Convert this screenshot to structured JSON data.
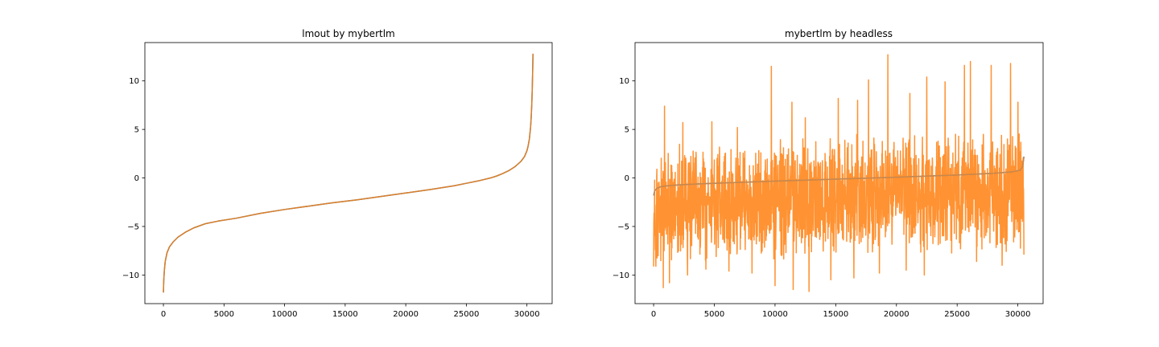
{
  "chart_data": [
    {
      "type": "line",
      "title": "lmout by mybertlm",
      "xlabel": "",
      "ylabel": "",
      "xlim": [
        -1530,
        32080
      ],
      "ylim": [
        -12.95,
        13.95
      ],
      "xticks": [
        0,
        5000,
        10000,
        15000,
        20000,
        25000,
        30000
      ],
      "xtick_labels": [
        "0",
        "5000",
        "10000",
        "15000",
        "20000",
        "25000",
        "30000"
      ],
      "yticks": [
        -10,
        -5,
        0,
        5,
        10
      ],
      "ytick_labels": [
        "−10",
        "−5",
        "0",
        "5",
        "10"
      ],
      "grid": false,
      "series": [
        {
          "color": "#1f77b4",
          "x": [
            0,
            30,
            80,
            150,
            300,
            500,
            800,
            1200,
            1800,
            2500,
            3500,
            4500,
            6000,
            8000,
            10000,
            12000,
            14000,
            16000,
            18000,
            20000,
            22000,
            24000,
            25000,
            26000,
            27000,
            27500,
            28000,
            28500,
            29000,
            29500,
            29800,
            30000,
            30100,
            30200,
            30300,
            30350,
            30400,
            30440,
            30470,
            30490,
            30500
          ],
          "y": [
            -11.8,
            -10.5,
            -9.5,
            -8.6,
            -7.7,
            -7.1,
            -6.6,
            -6.1,
            -5.6,
            -5.15,
            -4.7,
            -4.45,
            -4.15,
            -3.65,
            -3.25,
            -2.9,
            -2.55,
            -2.25,
            -1.9,
            -1.55,
            -1.2,
            -0.8,
            -0.55,
            -0.3,
            0.0,
            0.2,
            0.45,
            0.75,
            1.15,
            1.7,
            2.2,
            2.8,
            3.3,
            4.0,
            5.2,
            6.2,
            7.6,
            9.2,
            10.8,
            12.0,
            12.8
          ]
        },
        {
          "color": "#ff7f0e",
          "x": [
            0,
            30,
            80,
            150,
            300,
            500,
            800,
            1200,
            1800,
            2500,
            3500,
            4500,
            6000,
            8000,
            10000,
            12000,
            14000,
            16000,
            18000,
            20000,
            22000,
            24000,
            25000,
            26000,
            27000,
            27500,
            28000,
            28500,
            29000,
            29500,
            29800,
            30000,
            30100,
            30200,
            30300,
            30350,
            30400,
            30440,
            30470,
            30490,
            30500
          ],
          "y": [
            -11.8,
            -10.5,
            -9.5,
            -8.6,
            -7.7,
            -7.1,
            -6.6,
            -6.1,
            -5.6,
            -5.15,
            -4.7,
            -4.45,
            -4.15,
            -3.65,
            -3.25,
            -2.9,
            -2.55,
            -2.25,
            -1.9,
            -1.55,
            -1.2,
            -0.8,
            -0.55,
            -0.3,
            0.0,
            0.2,
            0.45,
            0.75,
            1.15,
            1.7,
            2.2,
            2.8,
            3.3,
            4.0,
            5.2,
            6.2,
            7.6,
            9.2,
            10.8,
            12.0,
            12.8
          ]
        }
      ]
    },
    {
      "type": "line",
      "title": "mybertlm by headless",
      "xlabel": "",
      "ylabel": "",
      "xlim": [
        -1530,
        32080
      ],
      "ylim": [
        -12.95,
        13.95
      ],
      "xticks": [
        0,
        5000,
        10000,
        15000,
        20000,
        25000,
        30000
      ],
      "xtick_labels": [
        "0",
        "5000",
        "10000",
        "15000",
        "20000",
        "25000",
        "30000"
      ],
      "yticks": [
        -10,
        -5,
        0,
        5,
        10
      ],
      "ytick_labels": [
        "−10",
        "−5",
        "0",
        "5",
        "10"
      ],
      "grid": false,
      "series": [
        {
          "color": "#1f77b4",
          "x": [
            0,
            100,
            300,
            600,
            1000,
            2000,
            4000,
            6000,
            10000,
            15000,
            20000,
            25000,
            28000,
            29500,
            30200,
            30400,
            30500
          ],
          "y": [
            -1.8,
            -1.3,
            -1.05,
            -0.9,
            -0.82,
            -0.72,
            -0.6,
            -0.5,
            -0.33,
            -0.12,
            0.08,
            0.3,
            0.48,
            0.62,
            0.8,
            1.2,
            2.2
          ]
        },
        {
          "color": "#ff7f0e",
          "noisy": true,
          "x_max": 30500,
          "band_upper": [
            1.6,
            2.4,
            2.8,
            3.0,
            3.1,
            3.2,
            3.3,
            3.4,
            3.5
          ],
          "band_lower": [
            -7.8,
            -7.4,
            -7.2,
            -7.0,
            -6.9,
            -6.8,
            -6.6,
            -6.4,
            -6.3
          ],
          "spikes": [
            {
              "x": 900,
              "y": 7.4
            },
            {
              "x": 2400,
              "y": 5.7
            },
            {
              "x": 4800,
              "y": 5.8
            },
            {
              "x": 6900,
              "y": 5.2
            },
            {
              "x": 9700,
              "y": 11.5
            },
            {
              "x": 11400,
              "y": 7.8
            },
            {
              "x": 12500,
              "y": 6.2
            },
            {
              "x": 15200,
              "y": 8.2
            },
            {
              "x": 16800,
              "y": 8.0
            },
            {
              "x": 17700,
              "y": 10.1
            },
            {
              "x": 19300,
              "y": 12.7
            },
            {
              "x": 21100,
              "y": 8.7
            },
            {
              "x": 22500,
              "y": 10.4
            },
            {
              "x": 24000,
              "y": 9.9
            },
            {
              "x": 25600,
              "y": 11.6
            },
            {
              "x": 26100,
              "y": 12.0
            },
            {
              "x": 27800,
              "y": 11.6
            },
            {
              "x": 29400,
              "y": 11.8
            },
            {
              "x": 30000,
              "y": 7.8
            },
            {
              "x": 800,
              "y": -11.3
            },
            {
              "x": 1300,
              "y": -10.8
            },
            {
              "x": 2800,
              "y": -10.0
            },
            {
              "x": 4300,
              "y": -9.4
            },
            {
              "x": 6200,
              "y": -9.6
            },
            {
              "x": 8100,
              "y": -9.8
            },
            {
              "x": 10000,
              "y": -11.1
            },
            {
              "x": 11500,
              "y": -11.5
            },
            {
              "x": 12800,
              "y": -11.7
            },
            {
              "x": 14600,
              "y": -10.5
            },
            {
              "x": 16500,
              "y": -10.3
            },
            {
              "x": 18600,
              "y": -9.8
            },
            {
              "x": 20800,
              "y": -9.5
            },
            {
              "x": 22300,
              "y": -10.0
            },
            {
              "x": 24000,
              "y": -9.4
            },
            {
              "x": 26600,
              "y": -8.6
            },
            {
              "x": 28700,
              "y": -9.0
            },
            {
              "x": 30500,
              "y": -7.9
            }
          ]
        }
      ]
    }
  ]
}
